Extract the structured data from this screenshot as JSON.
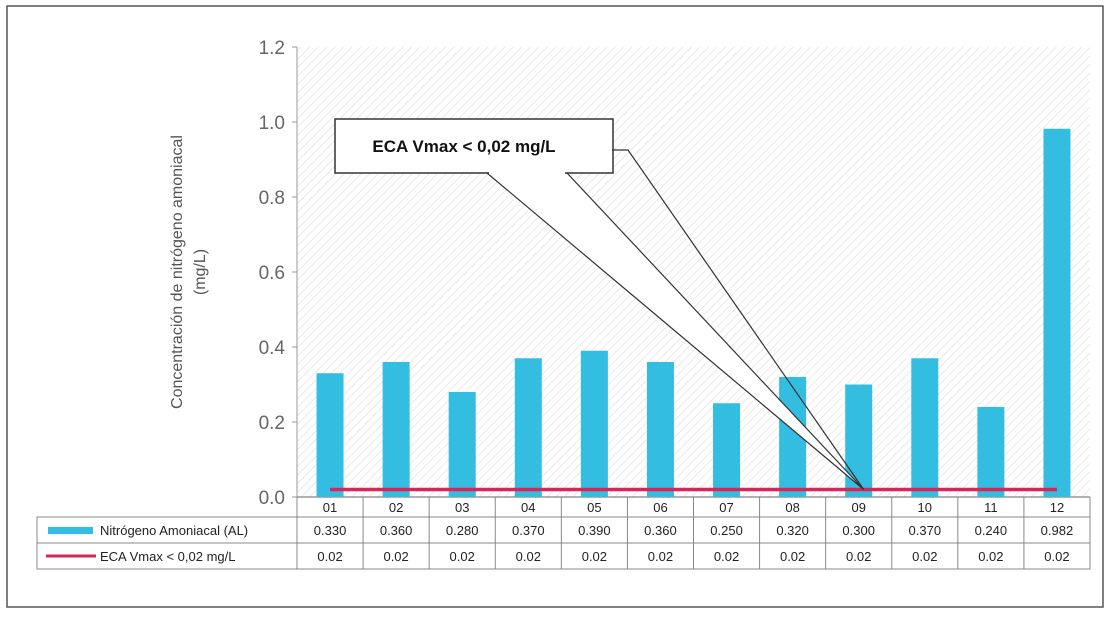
{
  "chart_data": {
    "type": "bar",
    "title": "",
    "xlabel": "",
    "ylabel": "Concentración de nitrógeno amoniacal (mg/L)",
    "ylabel_lines": [
      "Concentración de nitrógeno amoniacal",
      "(mg/L)"
    ],
    "ylim": [
      0,
      1.2
    ],
    "yticks": [
      "0.0",
      "0.2",
      "0.4",
      "0.6",
      "0.8",
      "1.0",
      "1.2"
    ],
    "ytick_values": [
      0,
      0.2,
      0.4,
      0.6,
      0.8,
      1.0,
      1.2
    ],
    "categories": [
      "01",
      "02",
      "03",
      "04",
      "05",
      "06",
      "07",
      "08",
      "09",
      "10",
      "11",
      "12"
    ],
    "series": [
      {
        "name": "Nitrógeno Amoniacal (AL)",
        "kind": "bar",
        "color": "#33bde0",
        "values": [
          0.33,
          0.36,
          0.28,
          0.37,
          0.39,
          0.36,
          0.25,
          0.32,
          0.3,
          0.37,
          0.24,
          0.982
        ],
        "labels": [
          "0.330",
          "0.360",
          "0.280",
          "0.370",
          "0.390",
          "0.360",
          "0.250",
          "0.320",
          "0.300",
          "0.370",
          "0.240",
          "0.982"
        ]
      },
      {
        "name": "ECA Vmax < 0,02 mg/L",
        "kind": "line",
        "color": "#d6275a",
        "values": [
          0.02,
          0.02,
          0.02,
          0.02,
          0.02,
          0.02,
          0.02,
          0.02,
          0.02,
          0.02,
          0.02,
          0.02
        ],
        "labels": [
          "0.02",
          "0.02",
          "0.02",
          "0.02",
          "0.02",
          "0.02",
          "0.02",
          "0.02",
          "0.02",
          "0.02",
          "0.02",
          "0.02"
        ]
      }
    ],
    "annotation": {
      "text": "ECA Vmax < 0,02 mg/L",
      "points_to_category": "09",
      "points_to_value": 0.02
    },
    "grid": false,
    "legend": "data-table-below"
  }
}
